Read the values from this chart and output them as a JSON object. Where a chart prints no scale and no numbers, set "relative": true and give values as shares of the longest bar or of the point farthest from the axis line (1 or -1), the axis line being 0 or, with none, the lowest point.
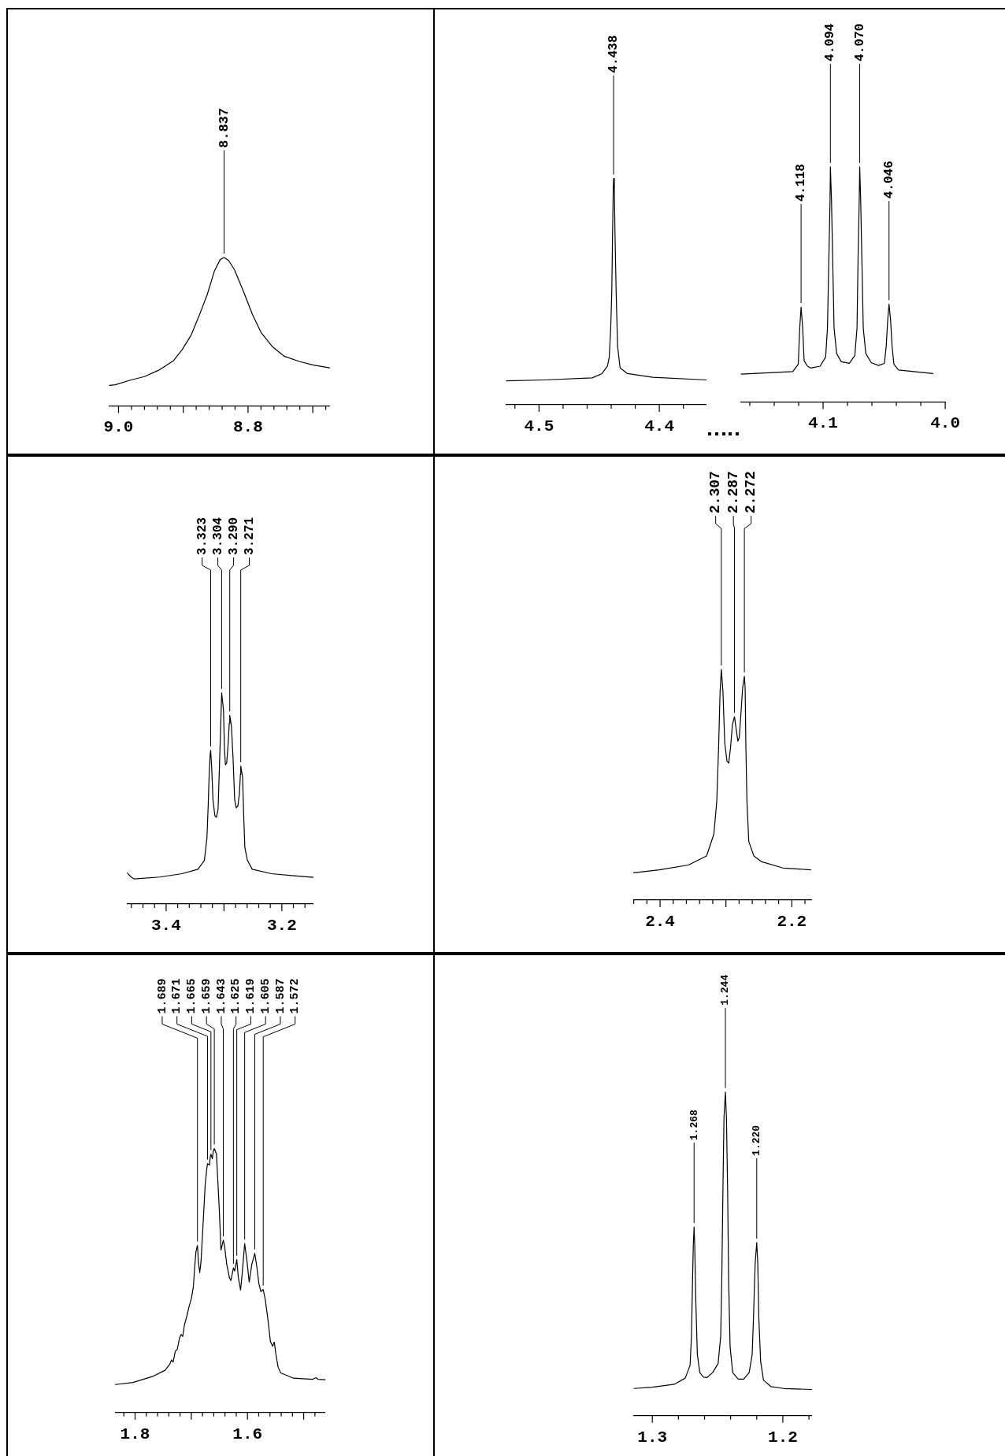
{
  "chart_data": [
    {
      "type": "line",
      "relative": true,
      "color": "#000000",
      "xlim": [
        9.014,
        8.674
      ],
      "xticks": [
        {
          "value": 9,
          "label": "9.0"
        },
        {
          "value": 8.98,
          "label": null
        },
        {
          "value": 8.96,
          "label": null
        },
        {
          "value": 8.94,
          "label": null
        },
        {
          "value": 8.92,
          "label": null
        },
        {
          "value": 8.9,
          "label": null
        },
        {
          "value": 8.88,
          "label": null
        },
        {
          "value": 8.86,
          "label": null
        },
        {
          "value": 8.84,
          "label": null
        },
        {
          "value": 8.82,
          "label": null
        },
        8.8,
        {
          "value": 8.78,
          "label": null
        },
        {
          "value": 8.76,
          "label": null
        },
        {
          "value": 8.74,
          "label": null
        },
        {
          "value": 8.72,
          "label": null
        },
        {
          "value": 8.7,
          "label": null
        },
        {
          "value": 8.68,
          "label": null
        }
      ],
      "x": [
        9.014,
        9.005,
        8.983,
        8.96,
        8.938,
        8.915,
        8.902,
        8.888,
        8.875,
        8.863,
        8.852,
        8.843,
        8.837,
        8.83,
        8.821,
        8.807,
        8.793,
        8.78,
        8.762,
        8.744,
        8.721,
        8.699,
        8.674
      ],
      "values": [
        0.139,
        0.143,
        0.173,
        0.198,
        0.241,
        0.306,
        0.378,
        0.476,
        0.614,
        0.751,
        0.908,
        0.986,
        1,
        0.98,
        0.918,
        0.771,
        0.614,
        0.496,
        0.398,
        0.335,
        0.3,
        0.276,
        0.257
      ],
      "annotations": [
        {
          "text": "8.837",
          "x": 8.837,
          "y": 1
        }
      ]
    },
    {
      "type": "line",
      "relative": true,
      "color": "#000000",
      "xlim": [
        4.527,
        4.361
      ],
      "xticks": [
        {
          "value": 4.52,
          "label": null
        },
        4.5,
        {
          "value": 4.48,
          "label": null
        },
        {
          "value": 4.46,
          "label": null
        },
        {
          "value": 4.44,
          "label": null
        },
        {
          "value": 4.42,
          "label": null
        },
        4.4,
        {
          "value": 4.38,
          "label": null
        }
      ],
      "x": [
        4.527,
        4.496,
        4.4558,
        4.4477,
        4.4431,
        4.4416,
        4.4404,
        4.4395,
        4.4389,
        4.4383,
        4.438,
        4.4374,
        4.4368,
        4.4359,
        4.4347,
        4.4326,
        4.4265,
        4.4054,
        4.361
      ],
      "values": [
        0.106,
        0.11,
        0.119,
        0.138,
        0.171,
        0.211,
        0.34,
        0.501,
        0.742,
        0.952,
        1,
        0.952,
        0.742,
        0.501,
        0.259,
        0.163,
        0.138,
        0.122,
        0.11
      ],
      "annotations": [
        {
          "text": "4.438",
          "x": 4.438,
          "y": 1
        }
      ]
    },
    {
      "type": "line",
      "relative": true,
      "color": "#000000",
      "xlim": [
        4.167,
        4.0
      ],
      "xticks": [
        {
          "value": 4.16,
          "label": null
        },
        {
          "value": 4.14,
          "label": null
        },
        {
          "value": 4.12,
          "label": null
        },
        4.1,
        {
          "value": 4.08,
          "label": null
        },
        {
          "value": 4.06,
          "label": null
        },
        {
          "value": 4.04,
          "label": null
        },
        {
          "value": 4.02,
          "label": null
        },
        {
          "value": 4,
          "label": "4.0"
        }
      ],
      "x": [
        4.167,
        4.1248,
        4.1203,
        4.1191,
        4.118,
        4.1167,
        4.1155,
        4.1128,
        4.1099,
        4.1024,
        4.0979,
        4.0964,
        4.0952,
        4.0943,
        4.094,
        4.0931,
        4.0922,
        4.091,
        4.0889,
        4.0851,
        4.0785,
        4.074,
        4.0722,
        4.0713,
        4.0704,
        4.07,
        4.0692,
        4.0683,
        4.0671,
        4.065,
        4.0606,
        4.0546,
        4.0498,
        4.0483,
        4.0471,
        4.046,
        4.0447,
        4.0435,
        4.042,
        4.0382,
        4.01
      ],
      "values": [
        0.118,
        0.129,
        0.16,
        0.315,
        0.403,
        0.315,
        0.175,
        0.152,
        0.144,
        0.152,
        0.191,
        0.315,
        0.625,
        0.857,
        1,
        0.857,
        0.625,
        0.315,
        0.206,
        0.171,
        0.164,
        0.198,
        0.315,
        0.625,
        0.857,
        1,
        0.857,
        0.625,
        0.315,
        0.206,
        0.167,
        0.155,
        0.164,
        0.237,
        0.346,
        0.416,
        0.346,
        0.237,
        0.16,
        0.136,
        0.121
      ],
      "annotations": [
        {
          "text": "4.118",
          "x": 4.118,
          "y": 0.403
        },
        {
          "text": "4.094",
          "x": 4.094,
          "y": 1
        },
        {
          "text": "4.070",
          "x": 4.07,
          "y": 1
        },
        {
          "text": "4.046",
          "x": 4.046,
          "y": 0.416
        }
      ]
    },
    {
      "type": "line",
      "relative": true,
      "color": "#000000",
      "xlim": [
        3.467,
        3.146
      ],
      "xticks": [
        {
          "value": 3.46,
          "label": null
        },
        {
          "value": 3.44,
          "label": null
        },
        {
          "value": 3.42,
          "label": null
        },
        3.4,
        {
          "value": 3.38,
          "label": null
        },
        {
          "value": 3.36,
          "label": null
        },
        {
          "value": 3.34,
          "label": null
        },
        {
          "value": 3.32,
          "label": null
        },
        {
          "value": 3.3,
          "label": null
        },
        {
          "value": 3.28,
          "label": null
        },
        {
          "value": 3.26,
          "label": null
        },
        {
          "value": 3.24,
          "label": null
        },
        {
          "value": 3.22,
          "label": null
        },
        3.2,
        {
          "value": 3.18,
          "label": null
        },
        {
          "value": 3.16,
          "label": null
        }
      ],
      "x": [
        3.467,
        3.4606,
        3.4551,
        3.411,
        3.3725,
        3.3449,
        3.3339,
        3.3295,
        3.3273,
        3.3256,
        3.324,
        3.323,
        3.3212,
        3.319,
        3.3157,
        3.313,
        3.3102,
        3.3074,
        3.3052,
        3.304,
        3.3008,
        3.2992,
        3.2975,
        3.2953,
        3.2926,
        3.2909,
        3.29,
        3.2871,
        3.2843,
        3.2815,
        3.2788,
        3.276,
        3.2733,
        3.2716,
        3.271,
        3.2678,
        3.2661,
        3.2639,
        3.2595,
        3.2512,
        3.2182,
        3.1796,
        3.146
      ],
      "values": [
        0.147,
        0.128,
        0.119,
        0.128,
        0.144,
        0.165,
        0.207,
        0.313,
        0.464,
        0.615,
        0.705,
        0.728,
        0.645,
        0.494,
        0.418,
        0.411,
        0.449,
        0.69,
        0.887,
        1,
        0.917,
        0.736,
        0.66,
        0.668,
        0.766,
        0.856,
        0.894,
        0.841,
        0.69,
        0.494,
        0.456,
        0.464,
        0.524,
        0.615,
        0.653,
        0.6,
        0.434,
        0.267,
        0.207,
        0.165,
        0.144,
        0.134,
        0.127
      ],
      "annotations": [
        {
          "text": "3.323",
          "x": 3.323,
          "y": 0.728
        },
        {
          "text": "3.304",
          "x": 3.304,
          "y": 1
        },
        {
          "text": "3.290",
          "x": 3.29,
          "y": 0.894
        },
        {
          "text": "3.271",
          "x": 3.271,
          "y": 0.653
        }
      ]
    },
    {
      "type": "line",
      "relative": true,
      "color": "#000000",
      "xlim": [
        2.44,
        2.17
      ],
      "xticks": [
        {
          "value": 2.44,
          "label": null
        },
        {
          "value": 2.42,
          "label": null
        },
        2.4,
        {
          "value": 2.38,
          "label": null
        },
        {
          "value": 2.36,
          "label": null
        },
        {
          "value": 2.34,
          "label": null
        },
        {
          "value": 2.32,
          "label": null
        },
        {
          "value": 2.3,
          "label": null
        },
        {
          "value": 2.28,
          "label": null
        },
        {
          "value": 2.26,
          "label": null
        },
        {
          "value": 2.24,
          "label": null
        },
        {
          "value": 2.22,
          "label": null
        },
        2.2,
        {
          "value": 2.18,
          "label": null
        }
      ],
      "x": [
        2.44,
        2.4012,
        2.357,
        2.3294,
        2.3183,
        2.3139,
        2.3111,
        2.3089,
        2.307,
        2.3045,
        2.3018,
        2.2984,
        2.2957,
        2.2929,
        2.2902,
        2.287,
        2.2846,
        2.2819,
        2.2797,
        2.2769,
        2.2747,
        2.272,
        2.2708,
        2.2697,
        2.2681,
        2.2653,
        2.2576,
        2.2465,
        2.2134,
        2.1714
      ],
      "values": [
        0.118,
        0.131,
        0.152,
        0.191,
        0.286,
        0.428,
        0.665,
        0.902,
        1,
        0.902,
        0.681,
        0.602,
        0.594,
        0.665,
        0.76,
        0.795,
        0.744,
        0.689,
        0.705,
        0.823,
        0.918,
        0.97,
        0.918,
        0.665,
        0.428,
        0.254,
        0.191,
        0.167,
        0.139,
        0.131
      ],
      "annotations": [
        {
          "text": "2.307",
          "x": 2.307,
          "y": 1
        },
        {
          "text": "2.287",
          "x": 2.287,
          "y": 0.795
        },
        {
          "text": "2.272",
          "x": 2.272,
          "y": 0.97
        }
      ]
    },
    {
      "type": "line",
      "relative": true,
      "color": "#000000",
      "xlim": [
        1.835,
        1.462
      ],
      "xticks": [
        {
          "value": 1.82,
          "label": null
        },
        1.8,
        {
          "value": 1.78,
          "label": null
        },
        {
          "value": 1.76,
          "label": null
        },
        {
          "value": 1.74,
          "label": null
        },
        {
          "value": 1.72,
          "label": null
        },
        {
          "value": 1.7,
          "label": null
        },
        {
          "value": 1.68,
          "label": null
        },
        {
          "value": 1.66,
          "label": null
        },
        {
          "value": 1.64,
          "label": null
        },
        {
          "value": 1.62,
          "label": null
        },
        1.6,
        {
          "value": 1.58,
          "label": null
        },
        {
          "value": 1.56,
          "label": null
        },
        {
          "value": 1.54,
          "label": null
        },
        {
          "value": 1.52,
          "label": null
        },
        {
          "value": 1.5,
          "label": null
        },
        {
          "value": 1.48,
          "label": null
        }
      ],
      "x": [
        1.835,
        1.8037,
        1.7695,
        1.7466,
        1.738,
        1.7352,
        1.7323,
        1.7283,
        1.7249,
        1.7209,
        1.718,
        1.7152,
        1.7123,
        1.7077,
        1.7037,
        1.6997,
        1.6963,
        1.694,
        1.6917,
        1.689,
        1.6872,
        1.6849,
        1.6826,
        1.6792,
        1.6752,
        1.6723,
        1.671,
        1.6677,
        1.666,
        1.665,
        1.6626,
        1.6609,
        1.659,
        1.6552,
        1.653,
        1.6501,
        1.6472,
        1.643,
        1.6409,
        1.6369,
        1.6323,
        1.6295,
        1.625,
        1.6228,
        1.619,
        1.6163,
        1.6123,
        1.6095,
        1.605,
        1.6009,
        1.5969,
        1.5923,
        1.587,
        1.5832,
        1.5797,
        1.5763,
        1.572,
        1.5683,
        1.5637,
        1.5592,
        1.5552,
        1.5523,
        1.5495,
        1.5455,
        1.5409,
        1.518,
        1.4837,
        1.478,
        1.4746,
        1.462
      ],
      "values": [
        0.106,
        0.114,
        0.136,
        0.16,
        0.184,
        0.199,
        0.191,
        0.233,
        0.239,
        0.282,
        0.296,
        0.288,
        0.33,
        0.367,
        0.403,
        0.433,
        0.476,
        0.549,
        0.609,
        0.633,
        0.567,
        0.53,
        0.573,
        0.706,
        0.864,
        0.925,
        0.943,
        0.937,
        0.973,
        0.979,
        0.961,
        0.99,
        1,
        0.979,
        0.888,
        0.767,
        0.615,
        0.652,
        0.633,
        0.561,
        0.512,
        0.5,
        0.548,
        0.536,
        0.579,
        0.512,
        0.464,
        0.524,
        0.64,
        0.573,
        0.494,
        0.561,
        0.603,
        0.549,
        0.488,
        0.458,
        0.466,
        0.427,
        0.354,
        0.269,
        0.251,
        0.267,
        0.221,
        0.172,
        0.15,
        0.13,
        0.126,
        0.132,
        0.126,
        0.124
      ],
      "annotations": [
        {
          "text": "1.689",
          "x": 1.689,
          "y": 0.633
        },
        {
          "text": "1.671",
          "x": 1.671,
          "y": 0.943
        },
        {
          "text": "1.665",
          "x": 1.665,
          "y": 0.979
        },
        {
          "text": "1.659",
          "x": 1.659,
          "y": 1
        },
        {
          "text": "1.643",
          "x": 1.643,
          "y": 0.652
        },
        {
          "text": "1.625",
          "x": 1.625,
          "y": 0.548
        },
        {
          "text": "1.619",
          "x": 1.619,
          "y": 0.579
        },
        {
          "text": "1.605",
          "x": 1.605,
          "y": 0.64
        },
        {
          "text": "1.587",
          "x": 1.587,
          "y": 0.603
        },
        {
          "text": "1.572",
          "x": 1.572,
          "y": 0.466
        }
      ]
    },
    {
      "type": "line",
      "relative": true,
      "color": "#000000",
      "xlim": [
        1.314,
        1.178
      ],
      "xticks": [
        1.3,
        {
          "value": 1.28,
          "label": null
        },
        {
          "value": 1.26,
          "label": null
        },
        {
          "value": 1.24,
          "label": null
        },
        {
          "value": 1.22,
          "label": null
        },
        1.2,
        {
          "value": 1.18,
          "label": null
        }
      ],
      "x": [
        1.314,
        1.3,
        1.2832,
        1.2748,
        1.2711,
        1.27,
        1.2692,
        1.2686,
        1.268,
        1.2675,
        1.2667,
        1.2655,
        1.2636,
        1.2608,
        1.258,
        1.2538,
        1.2496,
        1.2476,
        1.2468,
        1.2459,
        1.2451,
        1.244,
        1.2432,
        1.2423,
        1.2415,
        1.2404,
        1.2384,
        1.2342,
        1.23,
        1.2258,
        1.2235,
        1.2225,
        1.2212,
        1.22,
        1.2192,
        1.2184,
        1.217,
        1.2148,
        1.2092,
        1.1992,
        1.178
      ],
      "values": [
        0.084,
        0.088,
        0.097,
        0.116,
        0.155,
        0.245,
        0.414,
        0.527,
        0.583,
        0.527,
        0.358,
        0.189,
        0.133,
        0.119,
        0.118,
        0.133,
        0.161,
        0.245,
        0.414,
        0.696,
        0.921,
        1,
        0.921,
        0.696,
        0.414,
        0.212,
        0.133,
        0.113,
        0.113,
        0.133,
        0.189,
        0.302,
        0.471,
        0.535,
        0.471,
        0.302,
        0.167,
        0.11,
        0.09,
        0.084,
        0.081
      ],
      "annotations": [
        {
          "text": "1.268",
          "x": 1.268,
          "y": 0.583
        },
        {
          "text": "1.244",
          "x": 1.244,
          "y": 1
        },
        {
          "text": "1.220",
          "x": 1.22,
          "y": 0.535
        }
      ]
    }
  ]
}
